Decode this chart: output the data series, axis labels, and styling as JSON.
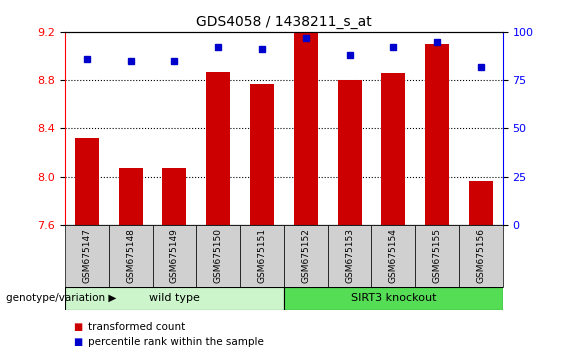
{
  "title": "GDS4058 / 1438211_s_at",
  "samples": [
    "GSM675147",
    "GSM675148",
    "GSM675149",
    "GSM675150",
    "GSM675151",
    "GSM675152",
    "GSM675153",
    "GSM675154",
    "GSM675155",
    "GSM675156"
  ],
  "transformed_count": [
    8.32,
    8.07,
    8.07,
    8.87,
    8.77,
    9.19,
    8.8,
    8.86,
    9.1,
    7.96
  ],
  "percentile_rank": [
    86,
    85,
    85,
    92,
    91,
    97,
    88,
    92,
    95,
    82
  ],
  "ylim_left": [
    7.6,
    9.2
  ],
  "ylim_right": [
    0,
    100
  ],
  "yticks_left": [
    7.6,
    8.0,
    8.4,
    8.8,
    9.2
  ],
  "yticks_right": [
    0,
    25,
    50,
    75,
    100
  ],
  "bar_color": "#cc0000",
  "dot_color": "#0000cc",
  "wild_type_label": "wild type",
  "knockout_label": "SIRT3 knockout",
  "wild_type_indices": [
    0,
    1,
    2,
    3,
    4
  ],
  "knockout_indices": [
    5,
    6,
    7,
    8,
    9
  ],
  "legend_bar_label": "transformed count",
  "legend_dot_label": "percentile rank within the sample",
  "genotype_label": "genotype/variation",
  "wild_type_color": "#ccf5cc",
  "knockout_color": "#55dd55",
  "tick_label_bg": "#d0d0d0",
  "title_fontsize": 10,
  "axis_fontsize": 8,
  "label_fontsize": 8
}
